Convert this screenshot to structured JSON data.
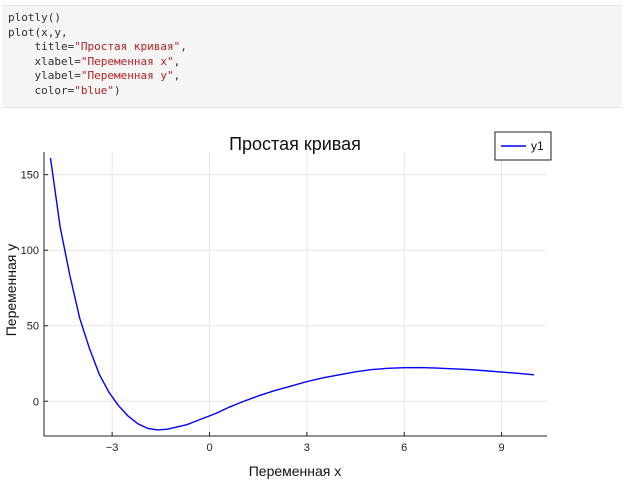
{
  "code_cell": {
    "line1": {
      "fn": "plotly",
      "paren": "()"
    },
    "line2": "plot(x,y,",
    "line3": {
      "key": "title=",
      "val": "\"Простая кривая\"",
      "tail": ","
    },
    "line4": {
      "key": "xlabel=",
      "val": "\"Переменная x\"",
      "tail": ","
    },
    "line5": {
      "key": "ylabel=",
      "val": "\"Переменная y\"",
      "tail": ","
    },
    "line6": {
      "key": "color=",
      "val": "\"blue\"",
      "tail": ")"
    }
  },
  "chart_data": {
    "type": "line",
    "title": "Простая кривая",
    "xlabel": "Переменная x",
    "ylabel": "Переменная y",
    "xlim": [
      -5.1,
      10.4
    ],
    "ylim": [
      -23,
      165
    ],
    "xticks": [
      -3,
      0,
      3,
      6,
      9
    ],
    "xtick_labels": [
      "−3",
      "0",
      "3",
      "6",
      "9"
    ],
    "yticks": [
      0,
      50,
      100,
      150
    ],
    "ytick_labels": [
      "0",
      "50",
      "100",
      "150"
    ],
    "grid": true,
    "legend": "top-right",
    "series": [
      {
        "name": "y1",
        "color": "#0000ff",
        "x": [
          -4.9,
          -4.6,
          -4.3,
          -4.0,
          -3.7,
          -3.4,
          -3.1,
          -2.8,
          -2.5,
          -2.2,
          -1.9,
          -1.6,
          -1.3,
          -1.0,
          -0.7,
          -0.4,
          -0.1,
          0.2,
          0.6,
          1.0,
          1.5,
          2.0,
          2.5,
          3.0,
          3.5,
          4.0,
          4.5,
          5.0,
          5.5,
          6.0,
          6.5,
          7.0,
          7.5,
          8.0,
          8.5,
          9.0,
          9.5,
          10.0
        ],
        "y": [
          161,
          115,
          83,
          55,
          35,
          18,
          6,
          -3,
          -10,
          -15,
          -18,
          -19,
          -18.5,
          -17,
          -15.5,
          -13,
          -10.5,
          -8,
          -4,
          -0.5,
          3.5,
          7,
          10,
          13,
          15.5,
          17.5,
          19.5,
          21,
          21.8,
          22.2,
          22.3,
          22,
          21.5,
          21,
          20.2,
          19.3,
          18.5,
          17.5
        ]
      }
    ]
  }
}
